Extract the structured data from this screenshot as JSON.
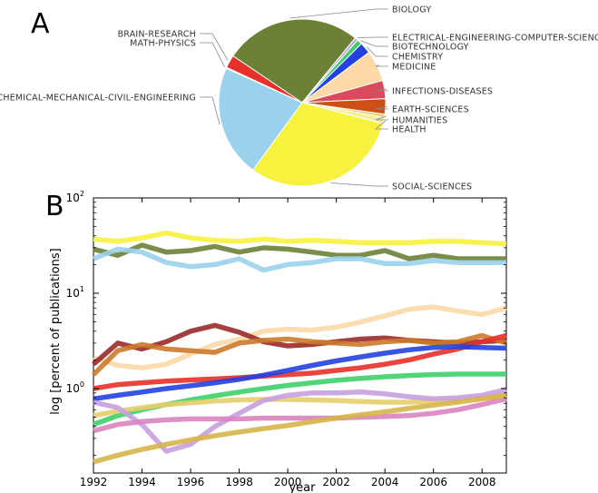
{
  "panels": {
    "a_letter": "A",
    "b_letter": "B"
  },
  "chart_data": [
    {
      "type": "pie",
      "panel": "A",
      "title": "",
      "slices": [
        {
          "label": "BIOLOGY",
          "value": 26.5,
          "color": "#6b8136"
        },
        {
          "label": "ELECTRICAL-ENGINEERING-COMPUTER-SCIENCE",
          "value": 0.6,
          "color": "#c8a0e0"
        },
        {
          "label": "BIOTECHNOLOGY",
          "value": 1.0,
          "color": "#3fcf6a"
        },
        {
          "label": "CHEMISTRY",
          "value": 2.2,
          "color": "#2440e0"
        },
        {
          "label": "MEDICINE",
          "value": 6.0,
          "color": "#fcd9a6"
        },
        {
          "label": "INFECTIONS-DISEASES",
          "value": 3.5,
          "color": "#d94b5c"
        },
        {
          "label": "EARTH-SCIENCES",
          "value": 3.0,
          "color": "#cc5014"
        },
        {
          "label": "HUMANITIES",
          "value": 0.6,
          "color": "#e6ce6c"
        },
        {
          "label": "HEALTH",
          "value": 1.2,
          "color": "#f4eda0"
        },
        {
          "label": "SOCIAL-SCIENCES",
          "value": 31.0,
          "color": "#f7f23e"
        },
        {
          "label": "CHEMICAL-MECHANICAL-CIVIL-ENGINEERING",
          "value": 21.7,
          "color": "#9ad1ec"
        },
        {
          "label": "MATH-PHYSICS",
          "value": 0.2,
          "color": "#c9a0d4"
        },
        {
          "label": "BRAIN-RESEARCH",
          "value": 2.5,
          "color": "#e8302a"
        }
      ]
    },
    {
      "type": "line",
      "panel": "B",
      "title": "",
      "xlabel": "year",
      "ylabel": "log [percent of publications]",
      "yscale": "log",
      "xlim": [
        1992,
        2009
      ],
      "ylim": [
        0.13,
        100
      ],
      "xticks": [
        "1992",
        "1994",
        "1996",
        "1998",
        "2000",
        "2002",
        "2004",
        "2006",
        "2008"
      ],
      "yticks": [
        {
          "value": 1,
          "base": "10",
          "exp": "0"
        },
        {
          "value": 10,
          "base": "10",
          "exp": "1"
        },
        {
          "value": 100,
          "base": "10",
          "exp": "2"
        }
      ],
      "grid": false,
      "x": [
        1992,
        1993,
        1994,
        1995,
        1996,
        1997,
        1998,
        1999,
        2000,
        2001,
        2002,
        2003,
        2004,
        2005,
        2006,
        2007,
        2008,
        2009
      ],
      "series": [
        {
          "color": "#f7f23e",
          "values": [
            37,
            35,
            38,
            43,
            38,
            36,
            35,
            37,
            35,
            36,
            35,
            34,
            34,
            34,
            35,
            35,
            34,
            33
          ]
        },
        {
          "color": "#6b8136",
          "values": [
            29,
            25,
            32,
            27,
            28,
            31,
            27,
            30,
            29,
            27,
            25,
            25,
            28,
            23,
            25,
            23,
            23,
            23
          ]
        },
        {
          "color": "#9ad1ec",
          "values": [
            23,
            29,
            27,
            21,
            19,
            20,
            23,
            17.5,
            20,
            21,
            23,
            23,
            20.5,
            20.5,
            22,
            21,
            21,
            21
          ]
        },
        {
          "color": "#fcd9a6",
          "values": [
            2.1,
            1.75,
            1.65,
            1.8,
            2.3,
            2.9,
            3.3,
            4.0,
            4.2,
            4.1,
            4.4,
            5.0,
            5.8,
            6.8,
            7.2,
            6.5,
            6.0,
            7.0
          ]
        },
        {
          "color": "#992a2a",
          "values": [
            1.8,
            3.0,
            2.6,
            3.1,
            4.0,
            4.6,
            3.9,
            3.1,
            2.8,
            2.9,
            3.1,
            3.3,
            3.4,
            3.2,
            3.1,
            3.0,
            3.1,
            3.2
          ]
        },
        {
          "color": "#cc7a2a",
          "values": [
            1.4,
            2.5,
            2.9,
            2.6,
            2.5,
            2.4,
            3.0,
            3.2,
            3.3,
            3.1,
            3.0,
            2.9,
            3.1,
            3.2,
            3.0,
            3.1,
            3.6,
            3.0
          ]
        },
        {
          "color": "#e8302a",
          "values": [
            1.0,
            1.1,
            1.15,
            1.2,
            1.23,
            1.26,
            1.3,
            1.35,
            1.4,
            1.45,
            1.55,
            1.65,
            1.8,
            2.0,
            2.3,
            2.6,
            3.1,
            3.6
          ]
        },
        {
          "color": "#2440e0",
          "values": [
            0.78,
            0.85,
            0.92,
            1.0,
            1.07,
            1.15,
            1.25,
            1.38,
            1.55,
            1.75,
            1.95,
            2.15,
            2.35,
            2.55,
            2.7,
            2.75,
            2.7,
            2.65
          ]
        },
        {
          "color": "#3fcf6a",
          "values": [
            0.42,
            0.52,
            0.6,
            0.68,
            0.76,
            0.84,
            0.92,
            1.0,
            1.08,
            1.15,
            1.22,
            1.28,
            1.33,
            1.37,
            1.4,
            1.42,
            1.42,
            1.42
          ]
        },
        {
          "color": "#e6ce6c",
          "values": [
            0.52,
            0.58,
            0.63,
            0.68,
            0.71,
            0.74,
            0.76,
            0.77,
            0.77,
            0.76,
            0.75,
            0.73,
            0.72,
            0.72,
            0.74,
            0.76,
            0.8,
            0.85
          ]
        },
        {
          "color": "#c8a0e0",
          "values": [
            0.72,
            0.63,
            0.42,
            0.22,
            0.26,
            0.4,
            0.55,
            0.75,
            0.85,
            0.9,
            0.9,
            0.92,
            0.88,
            0.82,
            0.78,
            0.8,
            0.85,
            0.98
          ]
        },
        {
          "color": "#d984c0",
          "values": [
            0.36,
            0.42,
            0.45,
            0.47,
            0.48,
            0.48,
            0.48,
            0.49,
            0.49,
            0.49,
            0.49,
            0.5,
            0.51,
            0.52,
            0.55,
            0.6,
            0.68,
            0.78
          ]
        },
        {
          "color": "#d6b54a",
          "values": [
            0.17,
            0.2,
            0.23,
            0.26,
            0.29,
            0.32,
            0.35,
            0.38,
            0.41,
            0.45,
            0.49,
            0.53,
            0.57,
            0.62,
            0.67,
            0.72,
            0.78,
            0.85
          ]
        }
      ]
    }
  ]
}
